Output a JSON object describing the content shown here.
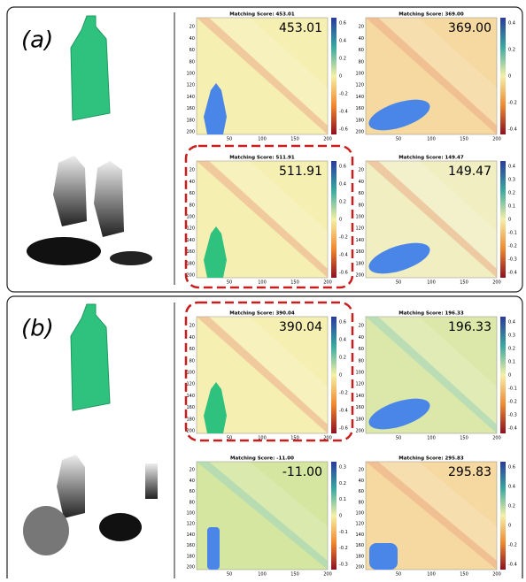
{
  "axes": {
    "yticks": [
      "20",
      "40",
      "60",
      "80",
      "100",
      "120",
      "140",
      "160",
      "180",
      "200"
    ],
    "xticks": [
      "50",
      "100",
      "150",
      "200"
    ]
  },
  "panels": [
    {
      "label": "(a)",
      "matrices": [
        {
          "title": "Matching Score: 453.01",
          "score": "453.01",
          "cbar": [
            "0.6",
            "0.4",
            "0.2",
            "0",
            "-0.2",
            "-0.4",
            "-0.6"
          ]
        },
        {
          "title": "Matching Score: 369.00",
          "score": "369.00",
          "cbar": [
            "0.4",
            "0.2",
            "0",
            "-0.2",
            "-0.4"
          ]
        },
        {
          "title": "Matching Score: 511.91",
          "score": "511.91",
          "cbar": [
            "0.6",
            "0.4",
            "0.2",
            "0",
            "-0.2",
            "-0.4",
            "-0.6"
          ]
        },
        {
          "title": "Matching Score: 149.47",
          "score": "149.47",
          "cbar": [
            "0.4",
            "0.3",
            "0.2",
            "0.1",
            "0",
            "-0.1",
            "-0.2",
            "-0.3",
            "-0.4"
          ]
        }
      ]
    },
    {
      "label": "(b)",
      "matrices": [
        {
          "title": "Matching Score: 390.04",
          "score": "390.04",
          "cbar": [
            "0.6",
            "0.4",
            "0.2",
            "0",
            "-0.2",
            "-0.4",
            "-0.6"
          ]
        },
        {
          "title": "Matching Score: 196.33",
          "score": "196.33",
          "cbar": [
            "0.4",
            "0.3",
            "0.2",
            "0.1",
            "0",
            "-0.1",
            "-0.2",
            "-0.3",
            "-0.4"
          ]
        },
        {
          "title": "Matching Score: -11.00",
          "score": "-11.00",
          "cbar": [
            "0.3",
            "0.2",
            "0.1",
            "0",
            "-0.1",
            "-0.2",
            "-0.3"
          ]
        },
        {
          "title": "Matching Score: 295.83",
          "score": "295.83",
          "cbar": [
            "0.6",
            "0.4",
            "0.2",
            "0",
            "-0.2",
            "-0.4"
          ]
        }
      ]
    }
  ]
}
